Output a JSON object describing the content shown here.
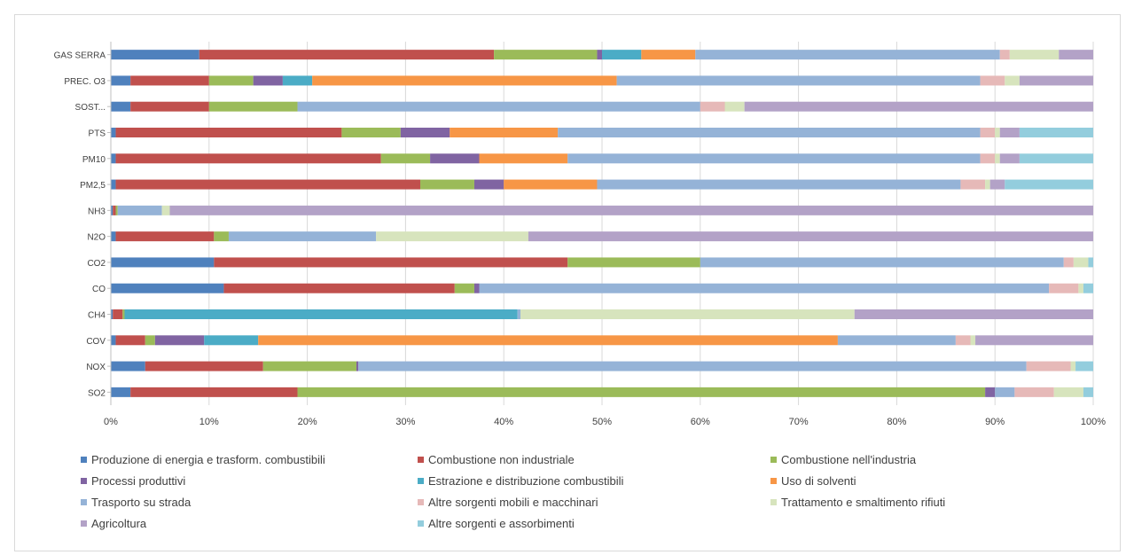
{
  "chart_data": {
    "type": "bar",
    "orientation": "horizontal",
    "stacked": "percent",
    "categories": [
      "GAS SERRA",
      "PREC. O3",
      "SOST...",
      "PTS",
      "PM10",
      "PM2,5",
      "NH3",
      "N2O",
      "CO2",
      "CO",
      "CH4",
      "COV",
      "NOX",
      "SO2"
    ],
    "x_ticks": [
      "0%",
      "10%",
      "20%",
      "30%",
      "40%",
      "50%",
      "60%",
      "70%",
      "80%",
      "90%",
      "100%"
    ],
    "xlim": [
      0,
      100
    ],
    "grid": true,
    "legend_position": "bottom",
    "series": [
      {
        "name": "Produzione di energia e trasform. combustibili",
        "color": "#4f81bd",
        "values": [
          9,
          2,
          2,
          0.5,
          0.5,
          0.5,
          0.2,
          0.5,
          10.5,
          11.5,
          0.2,
          0.5,
          3.5,
          2
        ]
      },
      {
        "name": "Combustione non industriale",
        "color": "#c0504d",
        "values": [
          30,
          8,
          8,
          23,
          27,
          31,
          0.3,
          10,
          36,
          23.5,
          1,
          3,
          12,
          17
        ]
      },
      {
        "name": "Combustione nell'industria",
        "color": "#9bbb59",
        "values": [
          10.5,
          4.5,
          9,
          6,
          5,
          5.5,
          0.2,
          1.5,
          13.5,
          2,
          0.2,
          1,
          9.5,
          70
        ]
      },
      {
        "name": "Processi produttivi",
        "color": "#8064a2",
        "values": [
          0.5,
          3,
          0,
          5,
          5,
          3,
          0,
          0,
          0,
          0.5,
          0,
          5,
          0.2,
          1
        ]
      },
      {
        "name": "Estrazione e distribuzione combustibili",
        "color": "#4bacc6",
        "values": [
          4,
          3,
          0,
          0,
          0,
          0,
          0,
          0,
          0,
          0,
          40,
          5.5,
          0,
          0
        ]
      },
      {
        "name": "Uso di solventi",
        "color": "#f79646",
        "values": [
          5.5,
          31,
          0,
          11,
          9,
          9.5,
          0,
          0,
          0,
          0,
          0,
          59,
          0,
          0
        ]
      },
      {
        "name": "Trasporto su strada",
        "color": "#95b3d7",
        "values": [
          31,
          37,
          41,
          43,
          42,
          37,
          4.5,
          15,
          37,
          58,
          0.3,
          12,
          68,
          2
        ]
      },
      {
        "name": "Altre sorgenti mobili e macchinari",
        "color": "#e6b9b8",
        "values": [
          1,
          2.5,
          2.5,
          1.5,
          1.5,
          2.5,
          0,
          0,
          1,
          3,
          0,
          1.5,
          4.5,
          4
        ]
      },
      {
        "name": "Trattamento e smaltimento rifiuti",
        "color": "#d7e4bd",
        "values": [
          5,
          1.5,
          2,
          0.5,
          0.5,
          0.5,
          0.8,
          15.5,
          1.5,
          0.5,
          34,
          0.5,
          0.5,
          3
        ]
      },
      {
        "name": "Agricoltura",
        "color": "#b3a2c7",
        "values": [
          3.5,
          7.5,
          35.5,
          2,
          2,
          1.5,
          94,
          57.5,
          0,
          0,
          24.3,
          12,
          0,
          0
        ]
      },
      {
        "name": "Altre sorgenti e assorbimenti",
        "color": "#93cddd",
        "values": [
          0,
          0,
          0,
          7.5,
          7.5,
          9,
          0,
          0,
          0.5,
          1,
          0,
          0,
          1.8,
          1
        ]
      }
    ]
  }
}
